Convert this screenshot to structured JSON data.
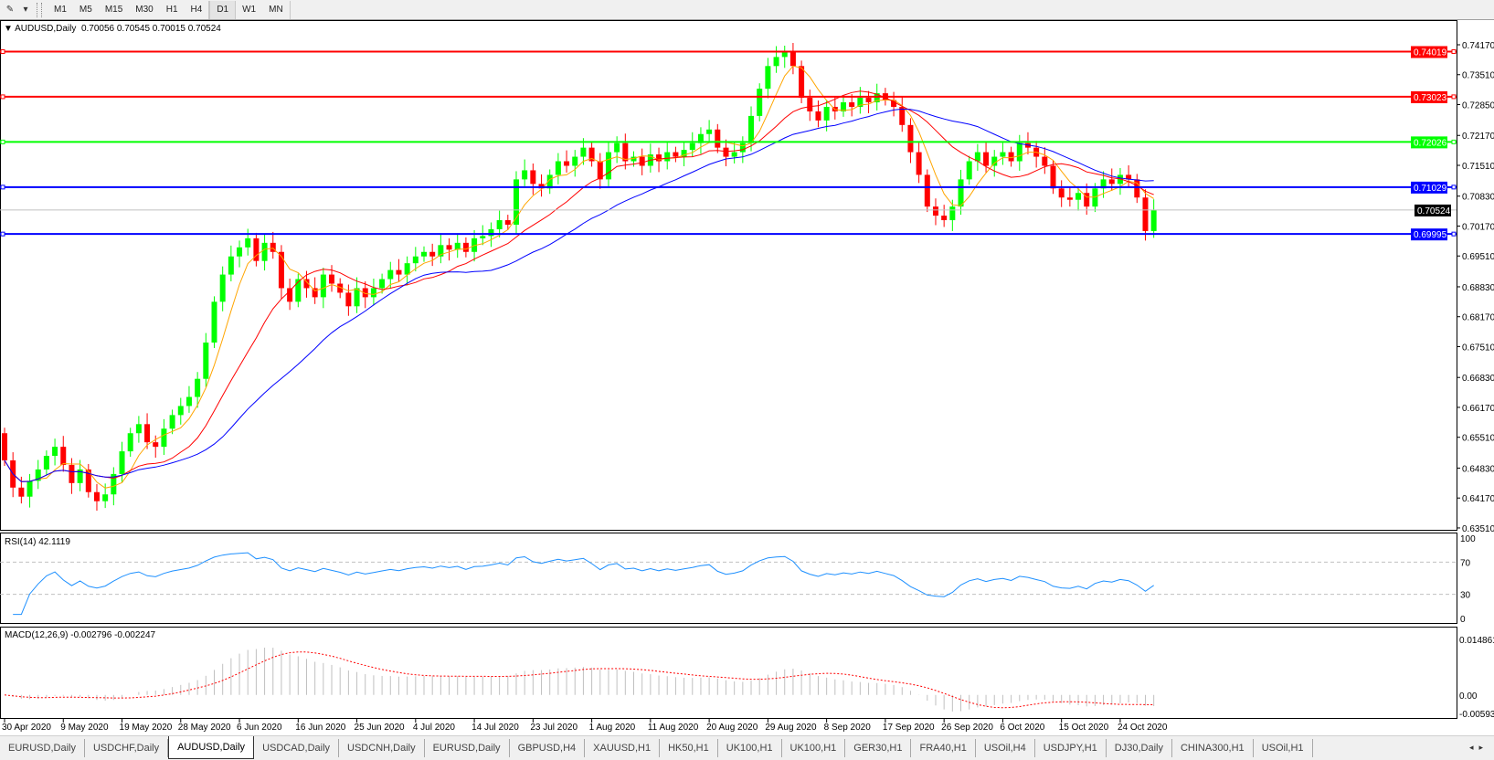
{
  "toolbar": {
    "icons": [
      "draw-tool-icon",
      "dropdown-arrow-icon"
    ],
    "timeframes": [
      "M1",
      "M5",
      "M15",
      "M30",
      "H1",
      "H4",
      "D1",
      "W1",
      "MN"
    ],
    "active_timeframe": "D1"
  },
  "chart": {
    "symbol": "AUDUSD,Daily",
    "ohlc_text": "0.70056 0.70545 0.70015 0.70524",
    "colors": {
      "bull": "#00ff00",
      "bear": "#ff0000",
      "axis": "#000000",
      "grid_level": "#c0c0c0"
    }
  },
  "chart_data": [
    {
      "type": "candlestick",
      "title": "AUDUSD,Daily",
      "ylim": [
        0.6347,
        0.7471
      ],
      "y_ticks": [
        "0.74170",
        "0.73510",
        "0.72850",
        "0.72170",
        "0.71510",
        "0.70830",
        "0.70170",
        "0.69510",
        "0.68830",
        "0.68170",
        "0.67510",
        "0.66830",
        "0.66170",
        "0.65510",
        "0.64830",
        "0.64170",
        "0.63510"
      ],
      "x_tick_labels": [
        "30 Apr 2020",
        "9 May 2020",
        "19 May 2020",
        "28 May 2020",
        "6 Jun 2020",
        "16 Jun 2020",
        "25 Jun 2020",
        "4 Jul 2020",
        "14 Jul 2020",
        "23 Jul 2020",
        "1 Aug 2020",
        "11 Aug 2020",
        "20 Aug 2020",
        "29 Aug 2020",
        "8 Sep 2020",
        "17 Sep 2020",
        "26 Sep 2020",
        "6 Oct 2020",
        "15 Oct 2020",
        "24 Oct 2020"
      ],
      "first_open": 0.656,
      "close": [
        0.65,
        0.644,
        0.642,
        0.6455,
        0.648,
        0.651,
        0.653,
        0.649,
        0.645,
        0.648,
        0.643,
        0.641,
        0.6425,
        0.647,
        0.652,
        0.656,
        0.658,
        0.654,
        0.653,
        0.657,
        0.66,
        0.662,
        0.664,
        0.668,
        0.676,
        0.685,
        0.691,
        0.695,
        0.697,
        0.699,
        0.694,
        0.698,
        0.696,
        0.688,
        0.685,
        0.69,
        0.688,
        0.686,
        0.691,
        0.689,
        0.687,
        0.684,
        0.688,
        0.686,
        0.688,
        0.69,
        0.692,
        0.691,
        0.6935,
        0.695,
        0.696,
        0.695,
        0.6975,
        0.6965,
        0.698,
        0.696,
        0.699,
        0.6995,
        0.701,
        0.703,
        0.702,
        0.712,
        0.714,
        0.711,
        0.71,
        0.713,
        0.716,
        0.715,
        0.717,
        0.719,
        0.716,
        0.712,
        0.718,
        0.72,
        0.716,
        0.717,
        0.715,
        0.7175,
        0.716,
        0.718,
        0.717,
        0.7185,
        0.72,
        0.722,
        0.723,
        0.719,
        0.717,
        0.718,
        0.72,
        0.726,
        0.732,
        0.737,
        0.739,
        0.74,
        0.737,
        0.73,
        0.727,
        0.725,
        0.728,
        0.727,
        0.729,
        0.728,
        0.73,
        0.729,
        0.731,
        0.7295,
        0.728,
        0.724,
        0.718,
        0.713,
        0.706,
        0.704,
        0.703,
        0.706,
        0.712,
        0.716,
        0.718,
        0.715,
        0.717,
        0.718,
        0.716,
        0.72,
        0.719,
        0.717,
        0.715,
        0.71,
        0.708,
        0.7075,
        0.709,
        0.706,
        0.71,
        0.712,
        0.711,
        0.713,
        0.712,
        0.708,
        0.7006,
        0.7052
      ],
      "moving_averages": [
        {
          "color": "#ffa500"
        },
        {
          "color": "#ff0000"
        },
        {
          "color": "#0000ff"
        }
      ],
      "horizontal_lines": [
        {
          "value": "0.74019",
          "color": "#ff0000"
        },
        {
          "value": "0.73023",
          "color": "#ff0000"
        },
        {
          "value": "0.72026",
          "color": "#00ff00"
        },
        {
          "value": "0.71029",
          "color": "#0000ff"
        },
        {
          "value": "0.69995",
          "color": "#0000ff"
        }
      ],
      "current_price": {
        "value": "0.70524",
        "color": "#000000"
      }
    },
    {
      "type": "line",
      "title": "RSI(14) 42.1119",
      "ylim": [
        0,
        100
      ],
      "y_ticks": [
        "100",
        "70",
        "30",
        "0"
      ],
      "levels": [
        70,
        30
      ],
      "color": "#1e90ff"
    },
    {
      "type": "bar",
      "title": "MACD(12,26,9) -0.002796 -0.002247",
      "ylim": [
        -0.00593,
        0.014861
      ],
      "y_ticks": [
        "0.014861",
        "0.00",
        "-0.00593"
      ],
      "histogram_color": "#c0c0c0",
      "signal_color": "#ff0000"
    }
  ],
  "tabs": {
    "items": [
      "EURUSD,Daily",
      "USDCHF,Daily",
      "AUDUSD,Daily",
      "USDCAD,Daily",
      "USDCNH,Daily",
      "EURUSD,Daily",
      "GBPUSD,H4",
      "XAUUSD,H1",
      "HK50,H1",
      "UK100,H1",
      "UK100,H1",
      "GER30,H1",
      "FRA40,H1",
      "USOil,H4",
      "USDJPY,H1",
      "DJ30,Daily",
      "CHINA300,H1",
      "USOil,H1"
    ],
    "active_index": 2,
    "scroll_left": "◂",
    "scroll_right": "▸"
  }
}
